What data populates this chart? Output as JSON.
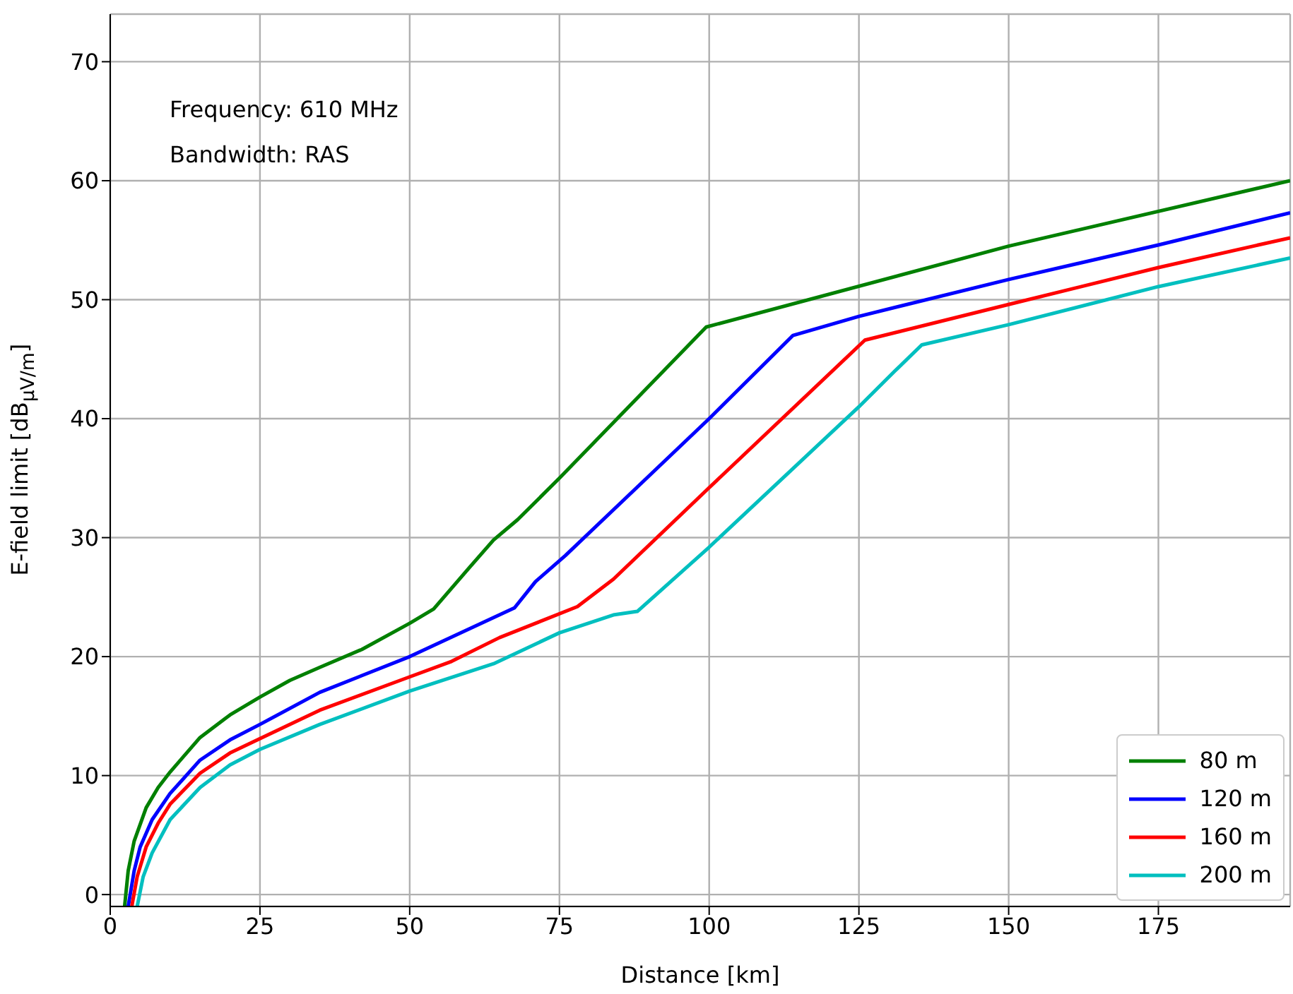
{
  "chart_data": {
    "type": "line",
    "xlabel": "Distance [km]",
    "ylabel": "E-field limit [dB$_{μV/m}$]",
    "annotations": [
      "Frequency: 610 MHz",
      "Bandwidth: RAS"
    ],
    "xlim": [
      0,
      197
    ],
    "ylim": [
      -1,
      74
    ],
    "xticks": [
      0,
      25,
      50,
      75,
      100,
      125,
      150,
      175
    ],
    "yticks": [
      0,
      10,
      20,
      30,
      40,
      50,
      60,
      70
    ],
    "grid": true,
    "legend": "bottom right",
    "marker": "none",
    "line_style": "solid",
    "series": [
      {
        "name": "80 m",
        "color": "#008000",
        "x": [
          2.4,
          3,
          4,
          6,
          8,
          10,
          15,
          20,
          25,
          30,
          35,
          42,
          50,
          54,
          60,
          64,
          68,
          75,
          99.5,
          150,
          197
        ],
        "values": [
          -1,
          2,
          4.5,
          7.3,
          9,
          10.3,
          13.2,
          15.1,
          16.6,
          18,
          19.1,
          20.6,
          22.8,
          24,
          27.5,
          29.8,
          31.5,
          35,
          47.7,
          54.5,
          60
        ]
      },
      {
        "name": "120 m",
        "color": "#0000ff",
        "x": [
          3,
          4,
          5,
          7,
          10,
          15,
          20,
          25,
          35,
          42,
          50,
          67.5,
          71,
          76,
          100,
          114,
          125,
          150,
          175,
          197
        ],
        "values": [
          -1,
          2,
          4,
          6.3,
          8.5,
          11.3,
          13,
          14.3,
          17,
          18.4,
          20,
          24.1,
          26.3,
          28.5,
          40,
          47,
          48.6,
          51.7,
          54.6,
          57.3
        ]
      },
      {
        "name": "160 m",
        "color": "#ff0000",
        "x": [
          3.6,
          4.5,
          6,
          8,
          10,
          15,
          20,
          25,
          35,
          50,
          57,
          65,
          78,
          84,
          100,
          126,
          150,
          175,
          197
        ],
        "values": [
          -1,
          1.5,
          4,
          6,
          7.6,
          10.2,
          11.9,
          13.1,
          15.5,
          18.3,
          19.6,
          21.6,
          24.2,
          26.5,
          34.2,
          46.6,
          49.6,
          52.7,
          55.2
        ]
      },
      {
        "name": "200 m",
        "color": "#00bfbf",
        "x": [
          4.5,
          5.5,
          7,
          10,
          15,
          20,
          25,
          35,
          50,
          64,
          75,
          84,
          88,
          100,
          125,
          131,
          135.5,
          150,
          175,
          197
        ],
        "values": [
          -1,
          1.5,
          3.5,
          6.3,
          9,
          10.9,
          12.2,
          14.3,
          17.1,
          19.4,
          22,
          23.5,
          23.8,
          29.2,
          41,
          44,
          46.2,
          47.9,
          51.1,
          53.5
        ]
      }
    ]
  }
}
